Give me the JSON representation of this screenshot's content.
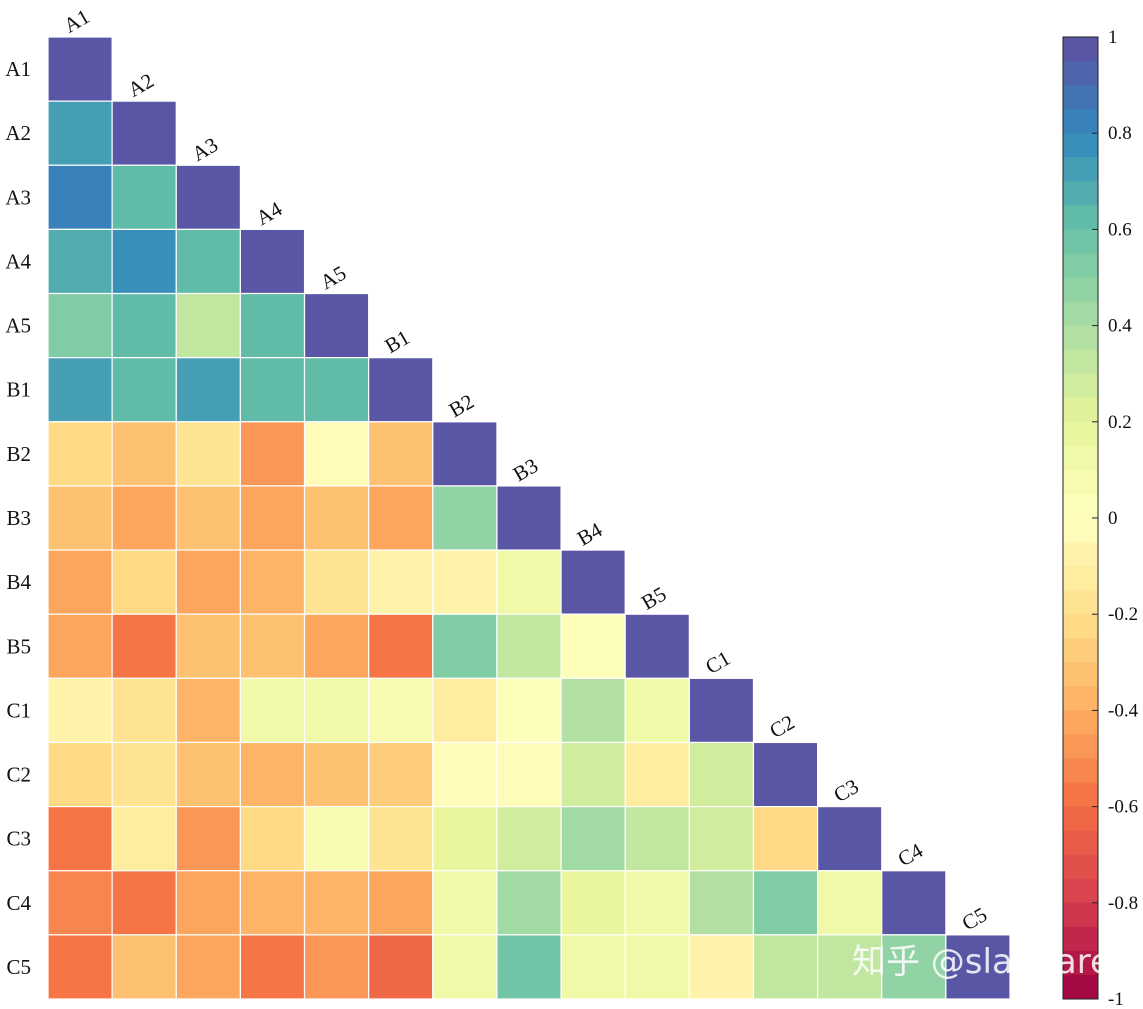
{
  "chart_data": {
    "type": "heatmap",
    "layout": "lower-triangular",
    "labels": [
      "A1",
      "A2",
      "A3",
      "A4",
      "A5",
      "B1",
      "B2",
      "B3",
      "B4",
      "B5",
      "C1",
      "C2",
      "C3",
      "C4",
      "C5"
    ],
    "values": [
      [
        1
      ],
      [
        0.72,
        1
      ],
      [
        0.8,
        0.6,
        1
      ],
      [
        0.68,
        0.75,
        0.6,
        1
      ],
      [
        0.52,
        0.65,
        0.3,
        0.62,
        1
      ],
      [
        0.72,
        0.65,
        0.72,
        0.65,
        0.65,
        1
      ],
      [
        -0.22,
        -0.35,
        -0.18,
        -0.48,
        -0.02,
        -0.3,
        1
      ],
      [
        -0.35,
        -0.42,
        -0.3,
        -0.42,
        -0.3,
        -0.42,
        0.48,
        1
      ],
      [
        -0.45,
        -0.22,
        -0.42,
        -0.38,
        -0.18,
        -0.1,
        -0.08,
        0.15,
        1
      ],
      [
        -0.45,
        -0.55,
        -0.3,
        -0.3,
        -0.42,
        -0.55,
        0.5,
        0.32,
        0.0,
        1
      ],
      [
        -0.1,
        -0.18,
        -0.38,
        0.15,
        0.15,
        0.05,
        -0.12,
        0.02,
        0.35,
        0.15,
        1
      ],
      [
        -0.22,
        -0.18,
        -0.3,
        -0.38,
        -0.32,
        -0.28,
        -0.02,
        -0.02,
        0.25,
        -0.15,
        0.25,
        1
      ],
      [
        -0.55,
        -0.15,
        -0.48,
        -0.22,
        0.05,
        -0.18,
        0.2,
        0.25,
        0.45,
        0.32,
        0.25,
        -0.25,
        1
      ],
      [
        -0.52,
        -0.55,
        -0.45,
        -0.38,
        -0.38,
        -0.45,
        0.15,
        0.45,
        0.2,
        0.15,
        0.38,
        0.5,
        0.15,
        1
      ],
      [
        -0.6,
        -0.32,
        -0.42,
        -0.6,
        -0.5,
        -0.62,
        0.15,
        0.58,
        0.15,
        0.12,
        -0.05,
        0.3,
        0.32,
        0.48,
        1
      ]
    ],
    "colormap": "Spectral",
    "clim": [
      -1,
      1
    ],
    "colorbar": {
      "position": "right",
      "levels": 40,
      "ticks": [
        "1",
        "0.8",
        "0.6",
        "0.4",
        "0.2",
        "0",
        "-0.2",
        "-0.4",
        "-0.6",
        "-0.8",
        "-1"
      ],
      "tick_values": [
        1,
        0.8,
        0.6,
        0.4,
        0.2,
        0,
        -0.2,
        -0.4,
        -0.6,
        -0.8,
        -1
      ]
    },
    "grid": true
  },
  "watermark": "知乎 @slandarer"
}
